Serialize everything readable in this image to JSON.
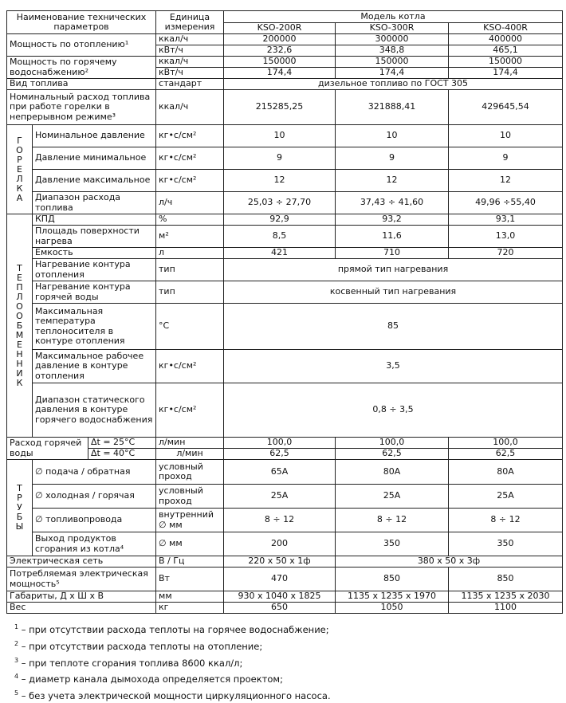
{
  "table": {
    "rows": [
      [
        "Наименование технических параметров",
        "Единица измерения",
        "Модель котла"
      ],
      [
        "KSO-200R",
        "KSO-300R",
        "KSO-400R"
      ],
      [
        "Мощность по отоплению¹",
        "ккал/ч",
        "200000",
        "300000",
        "400000"
      ],
      [
        "кВт/ч",
        "232,6",
        "348,8",
        "465,1"
      ],
      [
        "Мощность по горячему водоснабжению²",
        "ккал/ч",
        "150000",
        "150000",
        "150000"
      ],
      [
        "кВт/ч",
        "174,4",
        "174,4",
        "174,4"
      ],
      [
        "Вид топлива",
        "стандарт",
        "дизельное топливо по ГОСТ 305"
      ],
      [
        "Номинальный расход топлива при работе горелки в непрерывном режиме³",
        "ккал/ч",
        "215285,25",
        "321888,41",
        "429645,54"
      ],
      [
        "Г\nО\nР\nЕ\nЛ\nК\nА",
        "Номинальное давление",
        "кг•с/см²",
        "10",
        "10",
        "10"
      ],
      [
        "Давление минимальное",
        "кг•с/см²",
        "9",
        "9",
        "9"
      ],
      [
        "Давление максимальное",
        "кг•с/см²",
        "12",
        "12",
        "12"
      ],
      [
        "Диапазон расхода топлива",
        "л/ч",
        "25,03 ÷ 27,70",
        "37,43 ÷ 41,60",
        "49,96 ÷55,40"
      ],
      [
        "Т\nЕ\nП\nЛ\nО\nО\nБ\nМ\nЕ\nН\nН\nИ\nК",
        "КПД",
        "%",
        "92,9",
        "93,2",
        "93,1"
      ],
      [
        "Площадь поверхности нагрева",
        "м²",
        "8,5",
        "11,6",
        "13,0"
      ],
      [
        "Емкость",
        "л",
        "421",
        "710",
        "720"
      ],
      [
        "Нагревание контура отопления",
        "тип",
        "прямой тип нагревания"
      ],
      [
        "Нагревание контура горячей воды",
        "тип",
        "косвенный тип нагревания"
      ],
      [
        "Максимальная температура теплоносителя в контуре отопления",
        "°С",
        "85"
      ],
      [
        "Максимальное рабочее давление в контуре отопления",
        "кг•с/см²",
        "3,5"
      ],
      [
        "Диапазон статического давления в контуре горячего водоснабжения",
        "кг•с/см²",
        "0,8 ÷ 3,5"
      ],
      [
        "Расход горячей воды",
        "Δt = 25°С",
        "л/мин",
        "100,0",
        "100,0",
        "100,0"
      ],
      [
        "Δt = 40°С",
        "л/мин",
        "62,5",
        "62,5",
        "62,5"
      ],
      [
        "Т\nР\nУ\nБ\nЫ",
        "∅ подача / обратная",
        "условный проход",
        "65А",
        "80А",
        "80А"
      ],
      [
        "∅ холодная / горячая",
        "условный проход",
        "25А",
        "25А",
        "25А"
      ],
      [
        "∅ топливопровода",
        "внутренний ∅ мм",
        "8 ÷ 12",
        "8 ÷ 12",
        "8 ÷ 12"
      ],
      [
        "Выход продуктов сгорания из котла⁴",
        "∅ мм",
        "200",
        "350",
        "350"
      ],
      [
        "Электрическая сеть",
        "В / Гц",
        "220 x 50 x 1ф",
        "380 x 50 x 3ф"
      ],
      [
        "Потребляемая электрическая мощность⁵",
        "Вт",
        "470",
        "850",
        "850"
      ],
      [
        "Габариты, Д x Ш x В",
        "мм",
        "930 x 1040 x 1825",
        "1135 x 1235 x 1970",
        "1135 x 1235 x 2030"
      ],
      [
        "Вес",
        "кг",
        "650",
        "1050",
        "1100"
      ]
    ]
  },
  "footnotes": [
    {
      "num": "1",
      "text": " – при отсутствии расхода теплоты на горячее водоснабжение;"
    },
    {
      "num": "2",
      "text": " – при отсутствии расхода теплоты на отопление;"
    },
    {
      "num": "3",
      "text": " – при теплоте сгорания топлива 8600 ккал/л;"
    },
    {
      "num": "4",
      "text": " – диаметр канала дымохода определяется проектом;"
    },
    {
      "num": "5",
      "text": " – без учета электрической мощности циркуляционного насоса."
    }
  ]
}
